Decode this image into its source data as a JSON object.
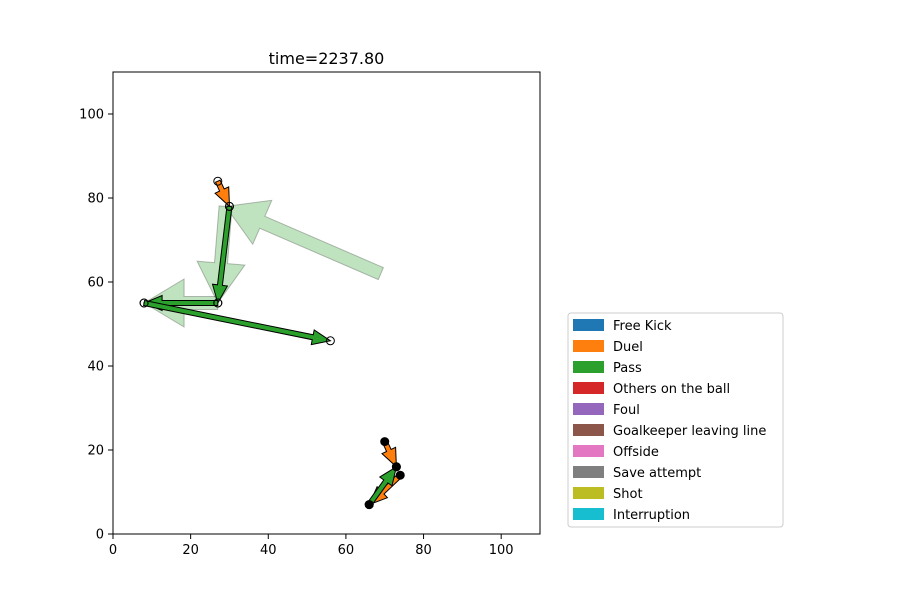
{
  "chart_data": {
    "type": "scatter",
    "title": "time=2237.80",
    "xlabel": "",
    "ylabel": "",
    "xlim": [
      0,
      110
    ],
    "ylim": [
      0,
      110
    ],
    "xticks": [
      0,
      20,
      40,
      60,
      80,
      100
    ],
    "yticks": [
      0,
      20,
      40,
      60,
      80,
      100
    ],
    "grid": false,
    "legend_placement": "outside-right-bottom",
    "legend": [
      {
        "label": "Free Kick",
        "color": "#1f77b4"
      },
      {
        "label": "Duel",
        "color": "#ff7f0e"
      },
      {
        "label": "Pass",
        "color": "#2ca02c"
      },
      {
        "label": "Others on the ball",
        "color": "#d62728"
      },
      {
        "label": "Foul",
        "color": "#9467bd"
      },
      {
        "label": "Goalkeeper leaving line",
        "color": "#8c564b"
      },
      {
        "label": "Offside",
        "color": "#e377c2"
      },
      {
        "label": "Save attempt",
        "color": "#7f7f7f"
      },
      {
        "label": "Shot",
        "color": "#bcbd22"
      },
      {
        "label": "Interruption",
        "color": "#17becf"
      }
    ],
    "faded_arrows": [
      {
        "event": "Pass",
        "start": [
          69,
          62
        ],
        "end": [
          29,
          78
        ]
      },
      {
        "event": "Pass",
        "start": [
          29,
          78
        ],
        "end": [
          27,
          55
        ]
      },
      {
        "event": "Pass",
        "start": [
          27,
          55
        ],
        "end": [
          8,
          55
        ]
      }
    ],
    "arrows": [
      {
        "event": "Duel",
        "start": [
          27,
          84
        ],
        "end": [
          30,
          78
        ],
        "marker": "open"
      },
      {
        "event": "Pass",
        "start": [
          30,
          78
        ],
        "end": [
          27,
          55
        ],
        "marker": "open"
      },
      {
        "event": "Pass",
        "start": [
          27,
          55
        ],
        "end": [
          8,
          55
        ],
        "marker": "open"
      },
      {
        "event": "Pass",
        "start": [
          8,
          55
        ],
        "end": [
          56,
          46
        ],
        "marker": "open"
      },
      {
        "event": "Duel",
        "start": [
          70,
          22
        ],
        "end": [
          73,
          16
        ],
        "marker": "filled"
      },
      {
        "event": "Duel",
        "start": [
          74,
          14
        ],
        "end": [
          66,
          7
        ],
        "marker": "filled"
      },
      {
        "event": "Pass",
        "start": [
          66,
          7
        ],
        "end": [
          73,
          16
        ],
        "marker": "filled"
      }
    ]
  }
}
